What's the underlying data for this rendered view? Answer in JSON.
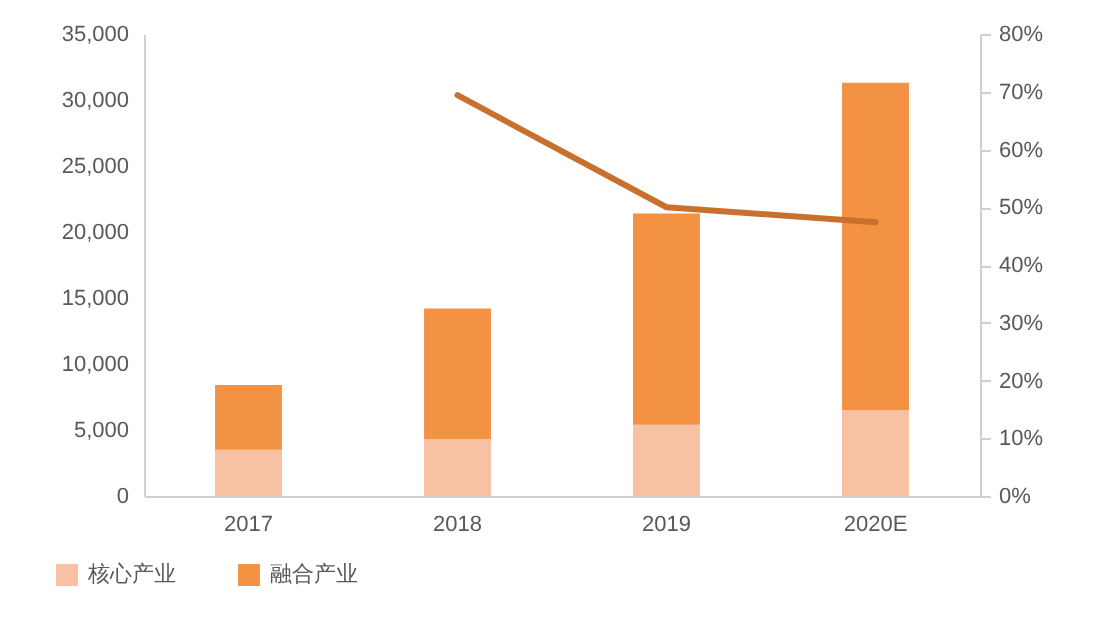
{
  "chart_data": {
    "type": "bar",
    "categories": [
      "2017",
      "2018",
      "2019",
      "2020E"
    ],
    "stacked": true,
    "series": [
      {
        "name": "核心产业",
        "color": "#f8c1a3",
        "values": [
          3500,
          4300,
          5400,
          6500
        ]
      },
      {
        "name": "融合产业",
        "color": "#f39243",
        "values": [
          4900,
          9900,
          16000,
          24800
        ]
      },
      {
        "type": "line",
        "axis": "y2",
        "color": "#c8712f",
        "values": [
          null,
          69.4,
          50.0,
          47.4
        ]
      }
    ],
    "ylim": [
      0,
      35000
    ],
    "yticks": [
      {
        "value": 0,
        "label": "0"
      },
      {
        "value": 5000,
        "label": "5,000"
      },
      {
        "value": 10000,
        "label": "10,000"
      },
      {
        "value": 15000,
        "label": "15,000"
      },
      {
        "value": 20000,
        "label": "20,000"
      },
      {
        "value": 25000,
        "label": "25,000"
      },
      {
        "value": 30000,
        "label": "30,000"
      },
      {
        "value": 35000,
        "label": "35,000"
      }
    ],
    "y2lim": [
      0,
      80
    ],
    "y2ticks": [
      {
        "value": 0,
        "label": "0%"
      },
      {
        "value": 10,
        "label": "10%"
      },
      {
        "value": 20,
        "label": "20%"
      },
      {
        "value": 30,
        "label": "30%"
      },
      {
        "value": 40,
        "label": "40%"
      },
      {
        "value": 50,
        "label": "50%"
      },
      {
        "value": 60,
        "label": "60%"
      },
      {
        "value": 70,
        "label": "70%"
      },
      {
        "value": 80,
        "label": "80%"
      }
    ],
    "grid": false,
    "legend": "bottom left"
  }
}
